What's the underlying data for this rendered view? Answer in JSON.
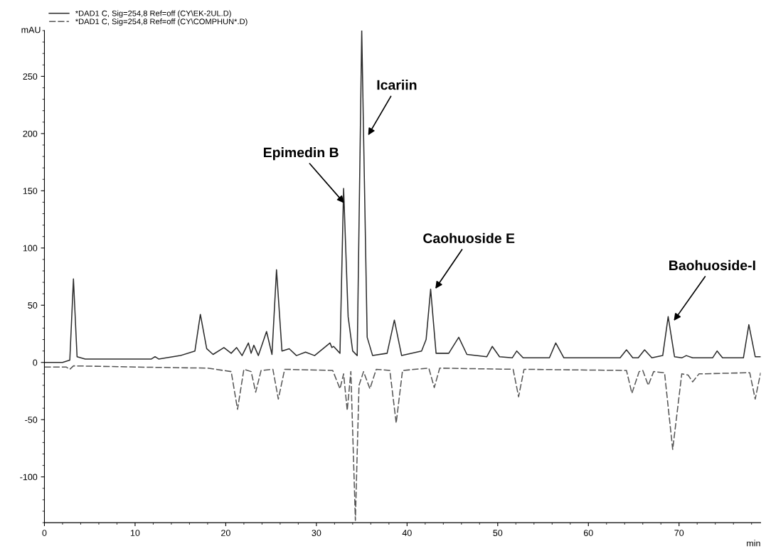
{
  "chart_data": {
    "type": "line",
    "xlabel": "min",
    "ylabel": "mAU",
    "xlim": [
      0,
      79
    ],
    "xticks": [
      0,
      10,
      20,
      30,
      40,
      50,
      60,
      70
    ],
    "ylim": [
      -140,
      290
    ],
    "yticks": [
      -100,
      -50,
      0,
      50,
      100,
      150,
      200,
      250
    ],
    "grid": false,
    "legend": "top left",
    "marker": "none",
    "series": [
      {
        "name": "*DAD1 C, Sig=254,8 Ref=off (CY\\EK-2UL.D)",
        "color": "#2b2b2b",
        "line_style": "solid",
        "x": [
          0,
          2.0,
          2.8,
          3.2,
          3.6,
          4.5,
          8,
          11.8,
          12.2,
          12.6,
          15,
          16.6,
          17.2,
          17.9,
          18.6,
          19.8,
          20.6,
          21.2,
          21.8,
          22.5,
          22.8,
          23.1,
          23.6,
          24.5,
          25.1,
          25.6,
          26.2,
          27.0,
          27.8,
          28.8,
          29.8,
          31.5,
          31.7,
          31.9,
          32.6,
          33.0,
          33.5,
          34.0,
          34.5,
          35.0,
          35.6,
          36.2,
          37.8,
          38.6,
          39.4,
          41.6,
          42.1,
          42.6,
          43.2,
          44.6,
          45.7,
          46.6,
          48.8,
          49.4,
          50.2,
          51.6,
          52.1,
          52.8,
          55.7,
          56.4,
          57.3,
          63.5,
          64.2,
          64.9,
          65.5,
          66.2,
          67.0,
          68.2,
          68.8,
          69.5,
          70.3,
          70.8,
          71.5,
          73.7,
          74.2,
          74.8,
          77.1,
          77.7,
          78.4,
          79
        ],
        "values": [
          0,
          0,
          2,
          73,
          5,
          3,
          3,
          3,
          5,
          3,
          6,
          10,
          42,
          12,
          7,
          13,
          8,
          13,
          6,
          17,
          8,
          15,
          6,
          27,
          7,
          81,
          10,
          12,
          6,
          9,
          6,
          17,
          13,
          14,
          8,
          152,
          40,
          10,
          6,
          290,
          22,
          6,
          8,
          37,
          6,
          10,
          20,
          64,
          8,
          8,
          22,
          7,
          5,
          14,
          5,
          4,
          10,
          4,
          4,
          17,
          4,
          4,
          11,
          4,
          4,
          11,
          4,
          6,
          40,
          5,
          4,
          6,
          4,
          4,
          10,
          4,
          4,
          33,
          5,
          5
        ]
      },
      {
        "name": "*DAD1 C, Sig=254,8 Ref=off (CY\\COMPHUN*.D)",
        "color": "#555555",
        "line_style": "dashed",
        "x": [
          0,
          2.4,
          2.8,
          3.2,
          10,
          18,
          20.6,
          21.3,
          22.0,
          22.8,
          23.3,
          23.9,
          25.2,
          25.8,
          26.5,
          31.8,
          32.6,
          33.0,
          33.4,
          33.8,
          34.3,
          34.7,
          35.2,
          35.9,
          36.6,
          38.1,
          38.8,
          39.5,
          42.4,
          43.0,
          43.6,
          51.7,
          52.3,
          52.9,
          64.2,
          64.8,
          65.6,
          66.0,
          66.6,
          67.2,
          68.4,
          69.3,
          70.3,
          71.0,
          71.5,
          72.2,
          77.8,
          78.4,
          79
        ],
        "values": [
          -4,
          -4,
          -6,
          -3,
          -4,
          -5,
          -8,
          -41,
          -6,
          -8,
          -26,
          -7,
          -6,
          -32,
          -6,
          -7,
          -23,
          -10,
          -42,
          -8,
          -138,
          -20,
          -8,
          -23,
          -6,
          -7,
          -53,
          -7,
          -5,
          -22,
          -5,
          -6,
          -30,
          -6,
          -7,
          -27,
          -8,
          -7,
          -20,
          -8,
          -9,
          -76,
          -10,
          -11,
          -17,
          -10,
          -9,
          -32,
          -9
        ]
      }
    ],
    "annotations": [
      {
        "text": "Icariin",
        "x": 35.6,
        "y": 197
      },
      {
        "text": "Epimedin B",
        "x": 33.2,
        "y": 138
      },
      {
        "text": "Caohuoside E",
        "x": 43.0,
        "y": 63
      },
      {
        "text": "Baohuoside-I",
        "x": 69.3,
        "y": 35
      }
    ]
  }
}
